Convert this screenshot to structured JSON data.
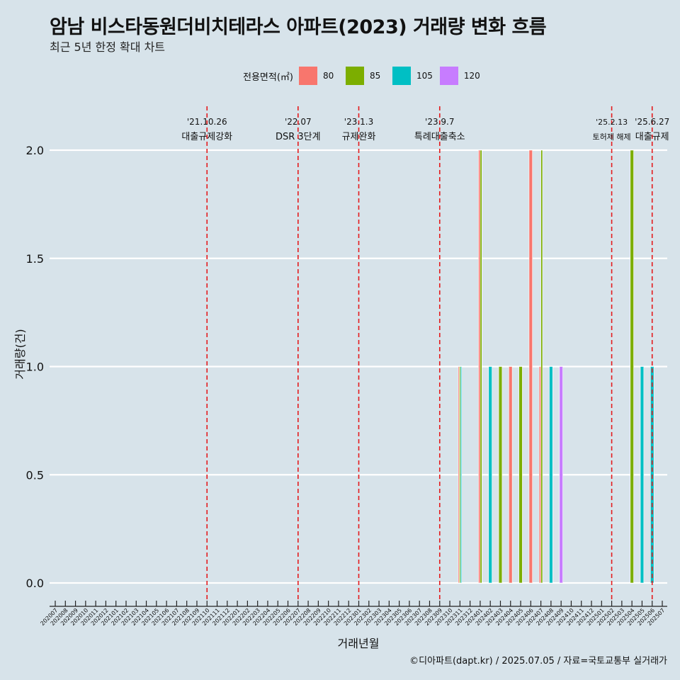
{
  "title": "암남 비스타동원더비치테라스 아파트(2023) 거래량 변화 흐름",
  "subtitle": "최근 5년 한정 확대 차트",
  "caption": "©디아파트(dapt.kr) / 2025.07.05 / 자료=국토교통부 실거래가",
  "legend": {
    "title": "전용면적(㎡)",
    "items": [
      {
        "label": "80",
        "color": "#f8766d"
      },
      {
        "label": "85",
        "color": "#7cae00"
      },
      {
        "label": "105",
        "color": "#00bfc4"
      },
      {
        "label": "120",
        "color": "#c77cff"
      }
    ]
  },
  "chart_data": {
    "type": "bar",
    "xlabel": "거래년월",
    "ylabel": "거래량(건)",
    "ylim": [
      0,
      2
    ],
    "yticks": [
      0.0,
      0.5,
      1.0,
      1.5,
      2.0
    ],
    "categories": [
      "202007",
      "202008",
      "202009",
      "202010",
      "202011",
      "202012",
      "202101",
      "202102",
      "202103",
      "202104",
      "202105",
      "202106",
      "202107",
      "202108",
      "202109",
      "202110",
      "202111",
      "202112",
      "202201",
      "202202",
      "202203",
      "202204",
      "202205",
      "202206",
      "202207",
      "202208",
      "202209",
      "202210",
      "202211",
      "202212",
      "202301",
      "202302",
      "202303",
      "202304",
      "202305",
      "202306",
      "202307",
      "202308",
      "202309",
      "202310",
      "202311",
      "202312",
      "202401",
      "202402",
      "202403",
      "202404",
      "202405",
      "202406",
      "202407",
      "202408",
      "202409",
      "202410",
      "202411",
      "202412",
      "202501",
      "202502",
      "202503",
      "202504",
      "202505",
      "202506",
      "202507"
    ],
    "series": [
      {
        "name": "80",
        "color": "#f8766d",
        "points": [
          [
            "202311",
            1
          ],
          [
            "202401",
            2
          ],
          [
            "202404",
            1
          ],
          [
            "202406",
            2
          ],
          [
            "202407",
            1
          ]
        ]
      },
      {
        "name": "85",
        "color": "#7cae00",
        "points": [
          [
            "202311",
            1
          ],
          [
            "202401",
            2
          ],
          [
            "202403",
            1
          ],
          [
            "202405",
            1
          ],
          [
            "202407",
            2
          ],
          [
            "202504",
            2
          ]
        ]
      },
      {
        "name": "105",
        "color": "#00bfc4",
        "points": [
          [
            "202311",
            1
          ],
          [
            "202402",
            1
          ],
          [
            "202408",
            1
          ],
          [
            "202505",
            1
          ],
          [
            "202506",
            1
          ]
        ]
      },
      {
        "name": "120",
        "color": "#c77cff",
        "points": [
          [
            "202409",
            1
          ]
        ]
      }
    ],
    "annotations": [
      {
        "at": "202110",
        "date": "'21.10.26",
        "text": "대출규제강화"
      },
      {
        "at": "202207",
        "date": "'22.07",
        "text": "DSR 3단계"
      },
      {
        "at": "202301",
        "date": "'23.1.3",
        "text": "규제완화"
      },
      {
        "at": "202309",
        "date": "'23.9.7",
        "text": "특례대출축소"
      },
      {
        "at": "202502",
        "date": "'25.2.13",
        "text": "토허제 해제"
      },
      {
        "at": "202506",
        "date": "'25.6.27",
        "text": "대출규제"
      }
    ],
    "grid": true,
    "legend_position": "top"
  }
}
